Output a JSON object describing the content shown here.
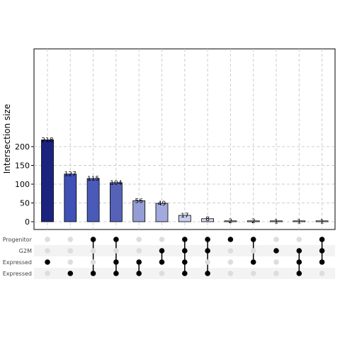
{
  "chart_data": {
    "type": "bar",
    "subtype": "upset",
    "ylabel": "Intersection size",
    "ylim": [
      0,
      228
    ],
    "yticks": [
      0,
      50,
      100,
      150,
      200
    ],
    "grid": true,
    "sets": [
      "Progenitor",
      "G2M",
      "Expressed",
      "Expressed"
    ],
    "values": [
      218,
      127,
      115,
      104,
      56,
      49,
      17,
      8,
      2,
      2,
      1,
      1,
      1
    ],
    "value_labels": [
      "218",
      "127",
      "115",
      "104",
      "56",
      "49",
      "17",
      "8",
      "2",
      "2",
      "1",
      "1",
      "1"
    ],
    "memberships": [
      [
        2
      ],
      [
        3
      ],
      [
        0,
        3
      ],
      [
        0,
        2,
        3
      ],
      [
        2,
        3
      ],
      [
        1,
        2
      ],
      [
        0,
        1,
        2,
        3
      ],
      [
        0,
        1,
        3
      ],
      [
        0
      ],
      [
        0,
        2
      ],
      [
        1
      ],
      [
        1,
        2,
        3
      ],
      [
        0,
        1,
        2
      ]
    ],
    "colors": [
      "#1a237e",
      "#3f51b5",
      "#4a5ab8",
      "#5562b8",
      "#949dd4",
      "#a2a9dc",
      "#c9cdee",
      "#d6d9f2",
      "#e0e2f5",
      "#e3e5f6",
      "#e6e8f7",
      "#e8eaf8",
      "#eaecf8"
    ],
    "dot_active_color": "#000000",
    "dot_inactive_color": "#dddddd"
  }
}
